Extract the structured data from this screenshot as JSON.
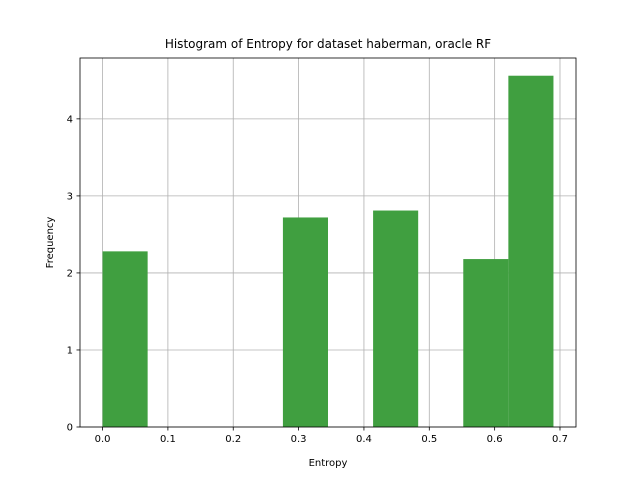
{
  "chart_data": {
    "type": "bar",
    "title": "Histogram of Entropy for dataset haberman, oracle RF",
    "xlabel": "Entropy",
    "ylabel": "Frequency",
    "bins": [
      {
        "x0": 0.0,
        "x1": 0.069,
        "value": 2.28
      },
      {
        "x0": 0.069,
        "x1": 0.138,
        "value": 0
      },
      {
        "x0": 0.138,
        "x1": 0.207,
        "value": 0
      },
      {
        "x0": 0.207,
        "x1": 0.276,
        "value": 0
      },
      {
        "x0": 0.276,
        "x1": 0.345,
        "value": 2.72
      },
      {
        "x0": 0.345,
        "x1": 0.414,
        "value": 0
      },
      {
        "x0": 0.414,
        "x1": 0.483,
        "value": 2.81
      },
      {
        "x0": 0.483,
        "x1": 0.552,
        "value": 0
      },
      {
        "x0": 0.552,
        "x1": 0.621,
        "value": 2.18
      },
      {
        "x0": 0.621,
        "x1": 0.69,
        "value": 4.56
      }
    ],
    "xlim": [
      -0.0345,
      0.7245
    ],
    "ylim": [
      0,
      4.79
    ],
    "xticks": [
      0.0,
      0.1,
      0.2,
      0.3,
      0.4,
      0.5,
      0.6,
      0.7
    ],
    "xtick_labels": [
      "0.0",
      "0.1",
      "0.2",
      "0.3",
      "0.4",
      "0.5",
      "0.6",
      "0.7"
    ],
    "yticks": [
      0,
      1,
      2,
      3,
      4
    ],
    "ytick_labels": [
      "0",
      "1",
      "2",
      "3",
      "4"
    ],
    "grid": true,
    "bar_color": "#409f40",
    "grid_color": "#b0b0b0"
  }
}
